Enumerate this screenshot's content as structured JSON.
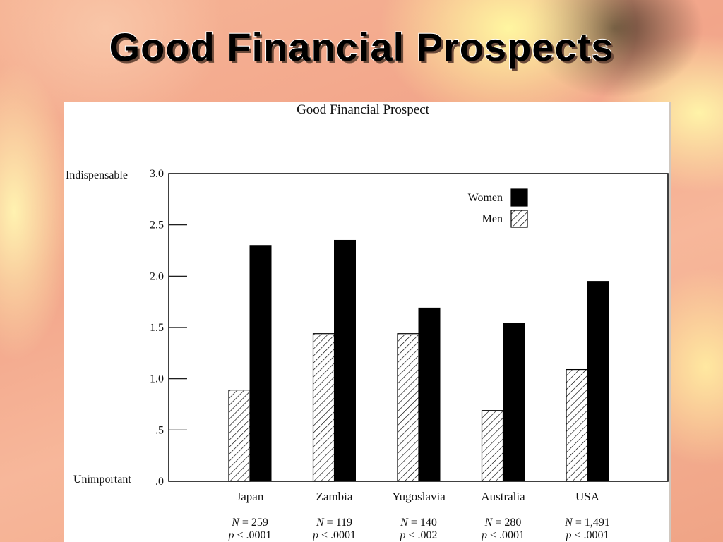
{
  "slide": {
    "title": "Good Financial Prospects"
  },
  "chart_data": {
    "type": "bar",
    "title": "Good Financial Prospect",
    "y_top_label": "Indispensable",
    "y_bottom_label": "Unimportant",
    "ylim": [
      0,
      3.0
    ],
    "yticks": [
      {
        "value": 0.0,
        "label": ".0"
      },
      {
        "value": 0.5,
        "label": ".5"
      },
      {
        "value": 1.0,
        "label": "1.0"
      },
      {
        "value": 1.5,
        "label": "1.5"
      },
      {
        "value": 2.0,
        "label": "2.0"
      },
      {
        "value": 2.5,
        "label": "2.5"
      },
      {
        "value": 3.0,
        "label": "3.0"
      }
    ],
    "categories": [
      "Japan",
      "Zambia",
      "Yugoslavia",
      "Australia",
      "USA"
    ],
    "n_values": [
      "259",
      "119",
      "140",
      "280",
      "1,491"
    ],
    "p_values": [
      ".0001",
      ".0001",
      ".002",
      ".0001",
      ".0001"
    ],
    "n_prefix": "N",
    "n_eq": " = ",
    "p_prefix": "p",
    "p_lt": " < ",
    "series": [
      {
        "name": "Men",
        "pattern": "hatched",
        "values": [
          0.89,
          1.44,
          1.44,
          0.69,
          1.09
        ]
      },
      {
        "name": "Women",
        "pattern": "solid",
        "values": [
          2.3,
          2.35,
          1.69,
          1.54,
          1.95
        ]
      }
    ],
    "legend": {
      "position": "top-right",
      "order": [
        "Women",
        "Men"
      ]
    },
    "colors": {
      "women": "#000000",
      "men_hatch": "#000000",
      "background": "#ffffff"
    }
  }
}
